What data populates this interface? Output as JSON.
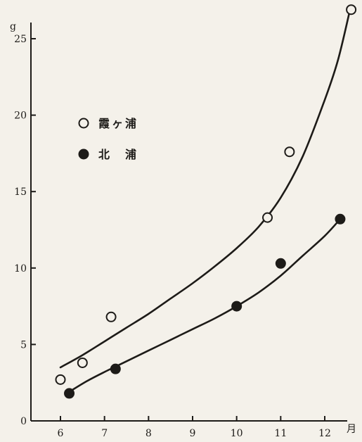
{
  "chart_data": {
    "type": "scatter",
    "xlabel": "月",
    "ylabel": "g",
    "xlim": [
      5.7,
      12.75
    ],
    "ylim": [
      0,
      26
    ],
    "x_ticks": [
      6,
      7,
      8,
      9,
      10,
      11,
      12
    ],
    "x_tick_labels": [
      "6",
      "7",
      "8",
      "9",
      "10",
      "11",
      "12"
    ],
    "y_ticks": [
      0,
      5,
      10,
      15,
      20,
      25
    ],
    "y_tick_labels": [
      "0",
      "5",
      "10",
      "15",
      "20",
      "25"
    ],
    "grid": false,
    "legend_position": "upper-left",
    "series": [
      {
        "name": "霞ヶ浦",
        "marker": "open-circle",
        "color": "#1d1b18",
        "points": [
          {
            "x": 6.0,
            "y": 2.7
          },
          {
            "x": 6.5,
            "y": 3.8
          },
          {
            "x": 7.15,
            "y": 6.8
          },
          {
            "x": 10.7,
            "y": 13.3
          },
          {
            "x": 11.2,
            "y": 17.6
          },
          {
            "x": 12.6,
            "y": 26.9
          }
        ],
        "fit_curve": [
          {
            "x": 6.0,
            "y": 3.5
          },
          {
            "x": 6.5,
            "y": 4.3
          },
          {
            "x": 7.0,
            "y": 5.2
          },
          {
            "x": 7.5,
            "y": 6.1
          },
          {
            "x": 8.0,
            "y": 7.0
          },
          {
            "x": 8.5,
            "y": 8.0
          },
          {
            "x": 9.0,
            "y": 9.0
          },
          {
            "x": 9.5,
            "y": 10.1
          },
          {
            "x": 10.0,
            "y": 11.3
          },
          {
            "x": 10.5,
            "y": 12.7
          },
          {
            "x": 11.0,
            "y": 14.6
          },
          {
            "x": 11.5,
            "y": 17.3
          },
          {
            "x": 12.0,
            "y": 21.0
          },
          {
            "x": 12.3,
            "y": 23.6
          },
          {
            "x": 12.55,
            "y": 26.6
          }
        ]
      },
      {
        "name": "北　浦",
        "marker": "filled-circle",
        "color": "#1d1b18",
        "points": [
          {
            "x": 6.2,
            "y": 1.8
          },
          {
            "x": 7.25,
            "y": 3.4
          },
          {
            "x": 10.0,
            "y": 7.5
          },
          {
            "x": 11.0,
            "y": 10.3
          },
          {
            "x": 12.35,
            "y": 13.2
          }
        ],
        "fit_curve": [
          {
            "x": 6.2,
            "y": 1.9
          },
          {
            "x": 6.6,
            "y": 2.6
          },
          {
            "x": 7.0,
            "y": 3.2
          },
          {
            "x": 7.5,
            "y": 3.9
          },
          {
            "x": 8.0,
            "y": 4.6
          },
          {
            "x": 8.5,
            "y": 5.3
          },
          {
            "x": 9.0,
            "y": 6.0
          },
          {
            "x": 9.5,
            "y": 6.7
          },
          {
            "x": 10.0,
            "y": 7.5
          },
          {
            "x": 10.5,
            "y": 8.4
          },
          {
            "x": 11.0,
            "y": 9.5
          },
          {
            "x": 11.5,
            "y": 10.8
          },
          {
            "x": 12.0,
            "y": 12.1
          },
          {
            "x": 12.35,
            "y": 13.2
          }
        ]
      }
    ]
  }
}
